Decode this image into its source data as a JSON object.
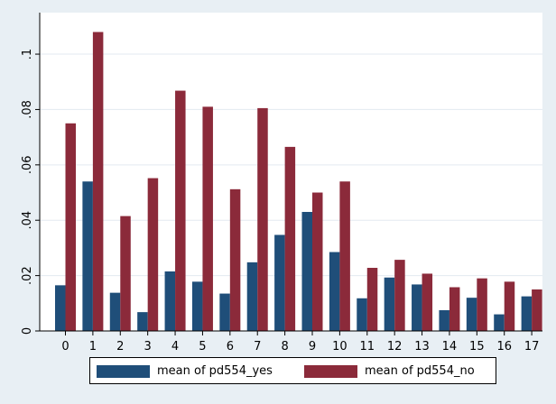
{
  "chart_data": {
    "type": "bar",
    "title": "",
    "xlabel": "",
    "ylabel": "",
    "categories": [
      "0",
      "1",
      "2",
      "3",
      "4",
      "5",
      "6",
      "7",
      "8",
      "9",
      "10",
      "11",
      "12",
      "13",
      "14",
      "15",
      "16",
      "17"
    ],
    "series": [
      {
        "name": "mean of pd554_yes",
        "color": "#1f4e79",
        "values": [
          0.0165,
          0.054,
          0.0138,
          0.0068,
          0.0215,
          0.0178,
          0.0135,
          0.0248,
          0.0347,
          0.043,
          0.0285,
          0.0118,
          0.0193,
          0.0168,
          0.0075,
          0.012,
          0.006,
          0.0125
        ]
      },
      {
        "name": "mean of pd554_no",
        "color": "#8b2a3a",
        "values": [
          0.075,
          0.108,
          0.0415,
          0.0552,
          0.0868,
          0.081,
          0.0512,
          0.0805,
          0.0665,
          0.05,
          0.054,
          0.0228,
          0.0257,
          0.0207,
          0.0158,
          0.019,
          0.0178,
          0.015
        ]
      }
    ],
    "ylim": [
      0,
      0.115
    ],
    "y_ticks": [
      0,
      0.02,
      0.04,
      0.06,
      0.08,
      0.1
    ],
    "y_tick_labels": [
      "0",
      ".02",
      ".04",
      ".06",
      ".08",
      ".1"
    ],
    "grid": true,
    "legend_position": "bottom",
    "colors": {
      "background": "#e8eff4",
      "plot_background": "#ffffff",
      "grid": "#e3eaf0"
    }
  }
}
